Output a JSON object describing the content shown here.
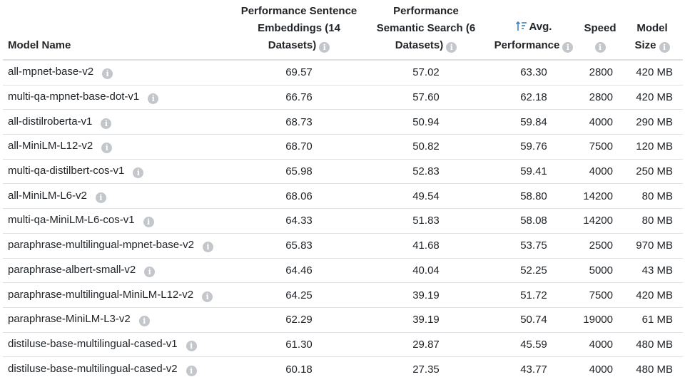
{
  "columns": {
    "model_name": "Model Name",
    "perf_sentence": [
      "Performance Sentence",
      "Embeddings (14",
      "Datasets)"
    ],
    "perf_semantic": [
      "Performance",
      "Semantic Search (6",
      "Datasets)"
    ],
    "avg_perf": [
      "Avg.",
      "Performance"
    ],
    "speed": "Speed",
    "model_size": [
      "Model",
      "Size"
    ]
  },
  "sort": {
    "column": "avg_perf",
    "direction": "descending",
    "icon": "sort-descending-icon"
  },
  "info_icon": "info-icon",
  "colors": {
    "accent": "#3b82c4",
    "info_icon": "#c3c6ca",
    "border": "#dee2e6"
  },
  "rows": [
    {
      "name": "all-mpnet-base-v2",
      "sentence": "69.57",
      "semantic": "57.02",
      "avg": "63.30",
      "speed": "2800",
      "size": "420 MB"
    },
    {
      "name": "multi-qa-mpnet-base-dot-v1",
      "sentence": "66.76",
      "semantic": "57.60",
      "avg": "62.18",
      "speed": "2800",
      "size": "420 MB"
    },
    {
      "name": "all-distilroberta-v1",
      "sentence": "68.73",
      "semantic": "50.94",
      "avg": "59.84",
      "speed": "4000",
      "size": "290 MB"
    },
    {
      "name": "all-MiniLM-L12-v2",
      "sentence": "68.70",
      "semantic": "50.82",
      "avg": "59.76",
      "speed": "7500",
      "size": "120 MB"
    },
    {
      "name": "multi-qa-distilbert-cos-v1",
      "sentence": "65.98",
      "semantic": "52.83",
      "avg": "59.41",
      "speed": "4000",
      "size": "250 MB"
    },
    {
      "name": "all-MiniLM-L6-v2",
      "sentence": "68.06",
      "semantic": "49.54",
      "avg": "58.80",
      "speed": "14200",
      "size": "80 MB"
    },
    {
      "name": "multi-qa-MiniLM-L6-cos-v1",
      "sentence": "64.33",
      "semantic": "51.83",
      "avg": "58.08",
      "speed": "14200",
      "size": "80 MB"
    },
    {
      "name": "paraphrase-multilingual-mpnet-base-v2",
      "sentence": "65.83",
      "semantic": "41.68",
      "avg": "53.75",
      "speed": "2500",
      "size": "970 MB"
    },
    {
      "name": "paraphrase-albert-small-v2",
      "sentence": "64.46",
      "semantic": "40.04",
      "avg": "52.25",
      "speed": "5000",
      "size": "43 MB"
    },
    {
      "name": "paraphrase-multilingual-MiniLM-L12-v2",
      "sentence": "64.25",
      "semantic": "39.19",
      "avg": "51.72",
      "speed": "7500",
      "size": "420 MB"
    },
    {
      "name": "paraphrase-MiniLM-L3-v2",
      "sentence": "62.29",
      "semantic": "39.19",
      "avg": "50.74",
      "speed": "19000",
      "size": "61 MB"
    },
    {
      "name": "distiluse-base-multilingual-cased-v1",
      "sentence": "61.30",
      "semantic": "29.87",
      "avg": "45.59",
      "speed": "4000",
      "size": "480 MB"
    },
    {
      "name": "distiluse-base-multilingual-cased-v2",
      "sentence": "60.18",
      "semantic": "27.35",
      "avg": "43.77",
      "speed": "4000",
      "size": "480 MB"
    }
  ]
}
